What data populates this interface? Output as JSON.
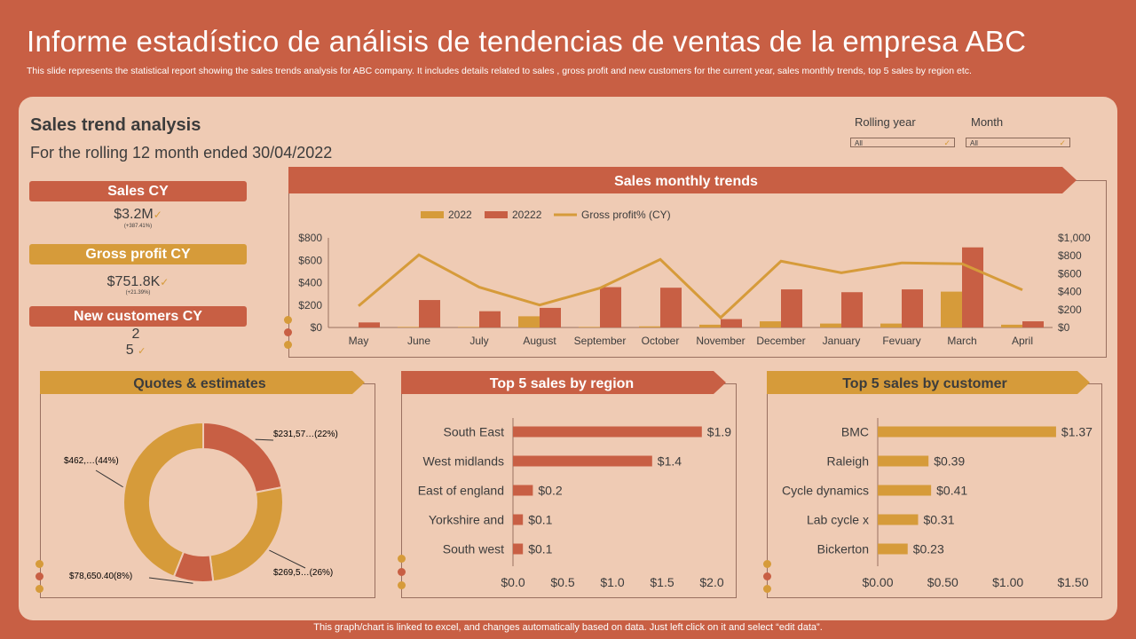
{
  "slide": {
    "title": "Informe estadístico de análisis de tendencias de ventas de la empresa ABC",
    "subtitle": "This slide represents the statistical report showing the sales trends analysis for ABC company. It includes details related to sales , gross profit and new customers for the current year, sales monthly trends, top 5 sales by region etc.",
    "footer": "This graph/chart is linked to excel, and changes automatically based on data. Just left click on it and select “edit data”."
  },
  "dashboard": {
    "heading": "Sales trend analysis",
    "period": "For the rolling 12 month ended 30/04/2022"
  },
  "filters": {
    "rolling_label": "Rolling year",
    "rolling_value": "All",
    "month_label": "Month",
    "month_value": "All",
    "check": "✓"
  },
  "kpis": {
    "sales_label": "Sales CY",
    "sales_value": "$3.2M",
    "sales_sub": "(+387.41%)",
    "profit_label": "Gross profit CY",
    "profit_value": "$751.8K",
    "profit_sub": "(+21.39%)",
    "customers_label": "New customers CY",
    "customers_value_1": "2",
    "customers_value_2": "5"
  },
  "colors": {
    "red": "#c85f44",
    "gold": "#d69b3a",
    "panel": "#efcbb4",
    "text": "#3c3c3c"
  },
  "chart_data": [
    {
      "type": "bar",
      "title": "Sales monthly trends",
      "categories": [
        "May",
        "June",
        "July",
        "August",
        "September",
        "October",
        "November",
        "December",
        "January",
        "Fevuary",
        "March",
        "April"
      ],
      "series": [
        {
          "name": "2022",
          "values": [
            0,
            5,
            5,
            100,
            5,
            10,
            25,
            55,
            35,
            35,
            320,
            25
          ],
          "axis": "left"
        },
        {
          "name": "20222",
          "values": [
            45,
            245,
            145,
            175,
            360,
            355,
            75,
            340,
            315,
            340,
            715,
            55
          ],
          "axis": "left"
        },
        {
          "name": "Gross profit% (CY)",
          "type": "line",
          "values": [
            240,
            810,
            450,
            250,
            440,
            760,
            110,
            740,
            610,
            720,
            710,
            420
          ],
          "axis": "right"
        }
      ],
      "ylim": [
        0,
        800
      ],
      "yticks": [
        "$0",
        "$200",
        "$400",
        "$600",
        "$800"
      ],
      "y2lim": [
        0,
        1000
      ],
      "y2ticks": [
        "$0",
        "$200",
        "$400",
        "$600",
        "$800",
        "$1,000"
      ],
      "legend": "top"
    },
    {
      "type": "pie",
      "title": "Quotes & estimates",
      "slices": [
        {
          "label": "$231,57…(22%)",
          "value": 22
        },
        {
          "label": "$269,5…(26%)",
          "value": 26
        },
        {
          "label": "$78,650.40(8%)",
          "value": 8
        },
        {
          "label": "$462,…(44%)",
          "value": 44
        }
      ]
    },
    {
      "type": "bar",
      "orientation": "horizontal",
      "title": "Top 5 sales by region",
      "categories": [
        "South East",
        "West midlands",
        "East of england",
        "Yorkshire and",
        "South west"
      ],
      "values": [
        1.9,
        1.4,
        0.2,
        0.1,
        0.1
      ],
      "labels": [
        "$1.9",
        "$1.4",
        "$0.2",
        "$0.1",
        "$0.1"
      ],
      "xlim": [
        0,
        2.0
      ],
      "xticks": [
        "$0.0",
        "$0.5",
        "$1.0",
        "$1.5",
        "$2.0"
      ]
    },
    {
      "type": "bar",
      "orientation": "horizontal",
      "title": "Top 5 sales by customer",
      "categories": [
        "BMC",
        "Raleigh",
        "Cycle dynamics",
        "Lab cycle x",
        "Bickerton"
      ],
      "values": [
        1.37,
        0.39,
        0.41,
        0.31,
        0.23
      ],
      "labels": [
        "$1.37",
        "$0.39",
        "$0.41",
        "$0.31",
        "$0.23"
      ],
      "xlim": [
        0,
        1.5
      ],
      "xticks": [
        "$0.00",
        "$0.50",
        "$1.00",
        "$1.50"
      ]
    }
  ]
}
